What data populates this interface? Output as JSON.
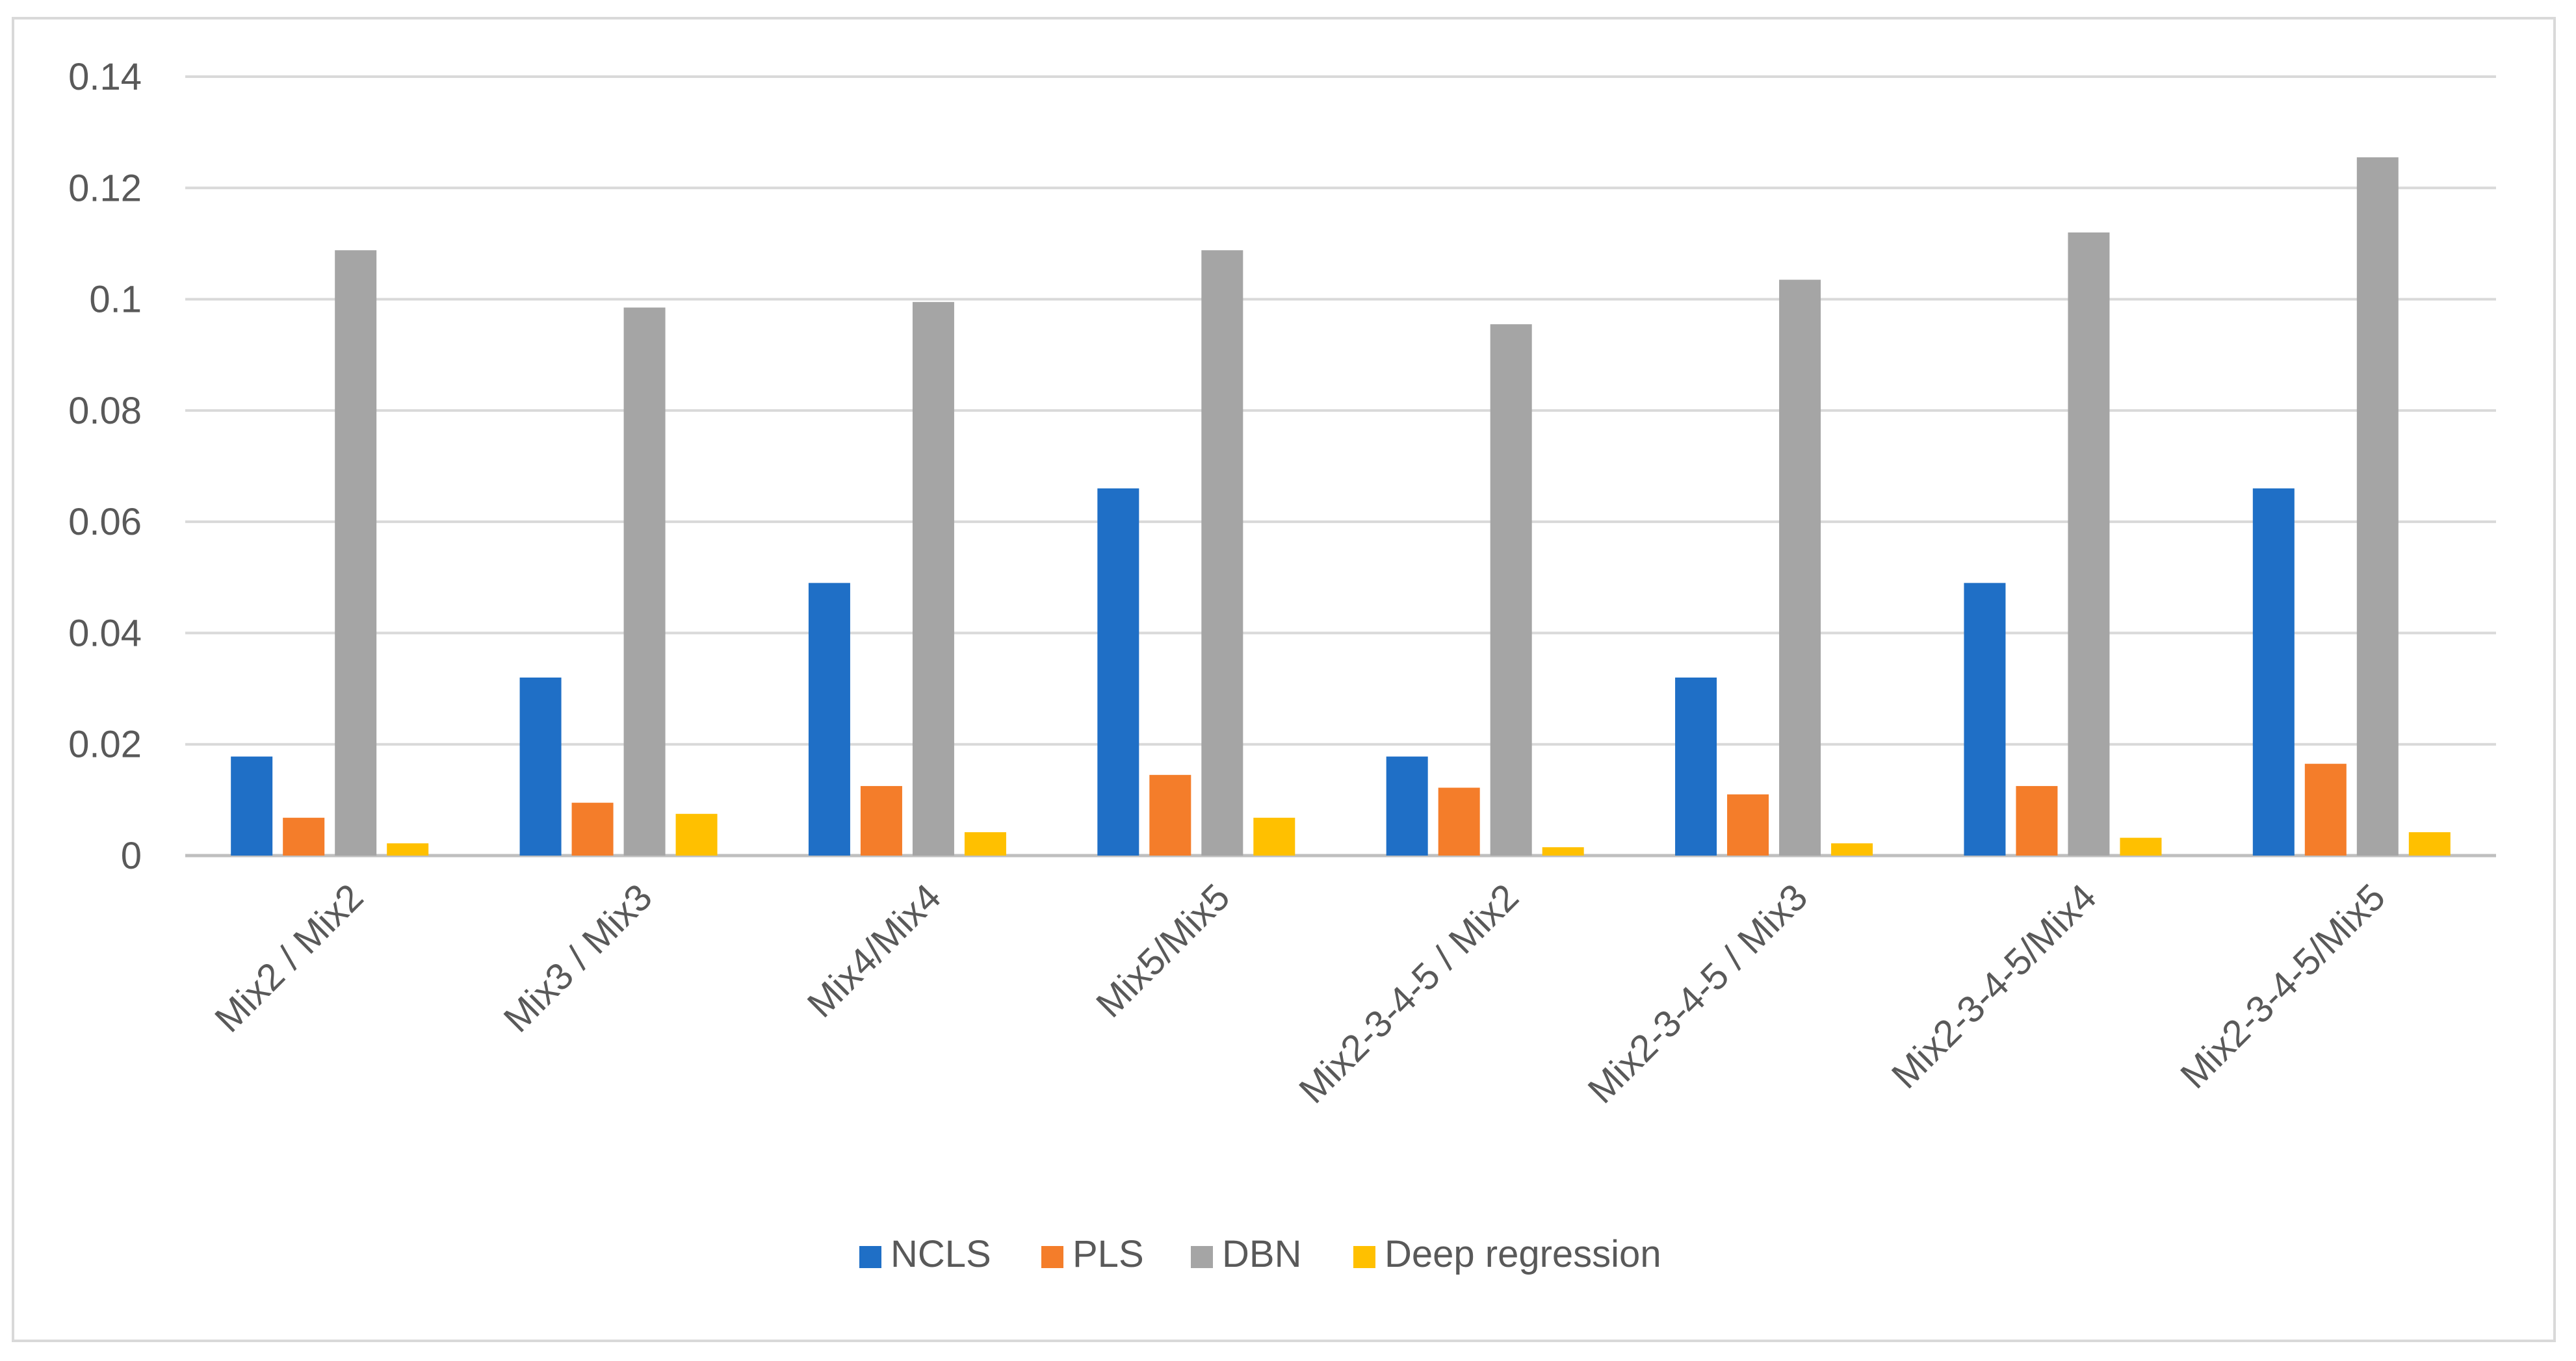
{
  "chart_data": {
    "type": "bar",
    "title": "",
    "xlabel": "",
    "ylabel": "",
    "ylim": [
      0,
      0.14
    ],
    "yticks": [
      "0",
      "0.02",
      "0.04",
      "0.06",
      "0.08",
      "0.1",
      "0.12",
      "0.14"
    ],
    "yticks_values": [
      0,
      0.02,
      0.04,
      0.06,
      0.08,
      0.1,
      0.12,
      0.14
    ],
    "grid": true,
    "legend_position": "bottom",
    "categories": [
      "Mix2 / Mix2",
      "Mix3 / Mix3",
      "Mix4/Mix4",
      "Mix5/Mix5",
      "Mix2-3-4-5 / Mix2",
      "Mix2-3-4-5 / Mix3",
      "Mix2-3-4-5/Mix4",
      "Mix2-3-4-5/Mix5"
    ],
    "series": [
      {
        "name": "NCLS",
        "color": "#1f6fc6",
        "values": [
          0.0178,
          0.032,
          0.049,
          0.066,
          0.0178,
          0.032,
          0.049,
          0.066
        ]
      },
      {
        "name": "PLS",
        "color": "#f47d2a",
        "values": [
          0.0068,
          0.0095,
          0.0125,
          0.0145,
          0.0122,
          0.011,
          0.0125,
          0.0165
        ]
      },
      {
        "name": "DBN",
        "color": "#a5a5a5",
        "values": [
          0.1088,
          0.0985,
          0.0995,
          0.1088,
          0.0955,
          0.1035,
          0.112,
          0.1255
        ]
      },
      {
        "name": "Deep regression",
        "color": "#ffc000",
        "values": [
          0.0022,
          0.0075,
          0.0042,
          0.0068,
          0.0015,
          0.0022,
          0.0032,
          0.0042
        ]
      }
    ]
  }
}
